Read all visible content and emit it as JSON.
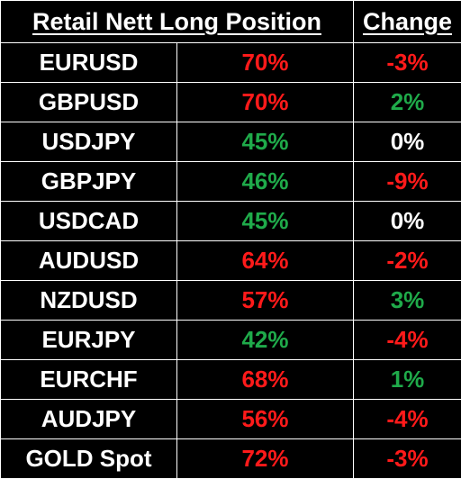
{
  "header": {
    "title": "Retail Nett Long Position",
    "change": "Change"
  },
  "colors": {
    "background": "#000000",
    "grid": "#ffffff",
    "red": "#ff1a1a",
    "green": "#1faa4a",
    "neutral": "#ffffff"
  },
  "rows": [
    {
      "pair": "EURUSD",
      "long": "70%",
      "long_color": "red",
      "change": "-3%",
      "change_color": "red"
    },
    {
      "pair": "GBPUSD",
      "long": "70%",
      "long_color": "red",
      "change": "2%",
      "change_color": "green"
    },
    {
      "pair": "USDJPY",
      "long": "45%",
      "long_color": "green",
      "change": "0%",
      "change_color": "white"
    },
    {
      "pair": "GBPJPY",
      "long": "46%",
      "long_color": "green",
      "change": "-9%",
      "change_color": "red"
    },
    {
      "pair": "USDCAD",
      "long": "45%",
      "long_color": "green",
      "change": "0%",
      "change_color": "white"
    },
    {
      "pair": "AUDUSD",
      "long": "64%",
      "long_color": "red",
      "change": "-2%",
      "change_color": "red"
    },
    {
      "pair": "NZDUSD",
      "long": "57%",
      "long_color": "red",
      "change": "3%",
      "change_color": "green"
    },
    {
      "pair": "EURJPY",
      "long": "42%",
      "long_color": "green",
      "change": "-4%",
      "change_color": "red"
    },
    {
      "pair": "EURCHF",
      "long": "68%",
      "long_color": "red",
      "change": "1%",
      "change_color": "green"
    },
    {
      "pair": "AUDJPY",
      "long": "56%",
      "long_color": "red",
      "change": "-4%",
      "change_color": "red"
    },
    {
      "pair": "GOLD Spot",
      "long": "72%",
      "long_color": "red",
      "change": "-3%",
      "change_color": "red"
    }
  ]
}
